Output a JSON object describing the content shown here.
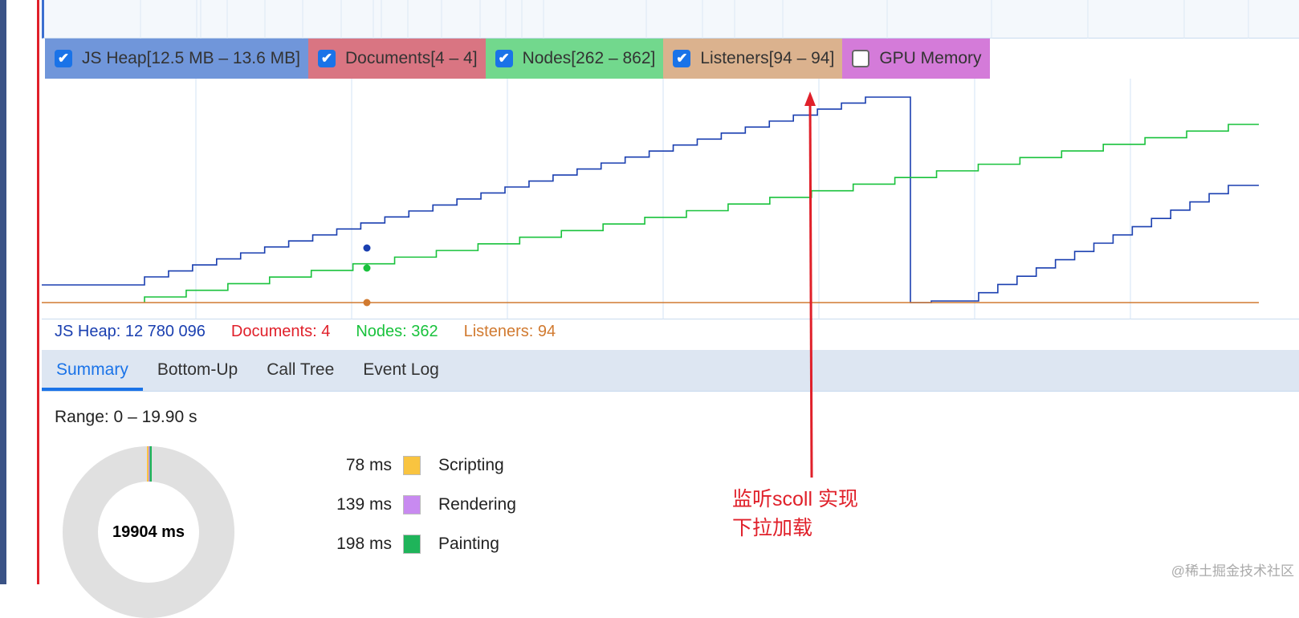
{
  "legend": [
    {
      "label": "JS Heap[12.5 MB – 13.6 MB]",
      "checked": true,
      "color": "#7096da"
    },
    {
      "label": "Documents[4 – 4]",
      "checked": true,
      "color": "#d97582"
    },
    {
      "label": "Nodes[262 – 862]",
      "checked": true,
      "color": "#72d88d"
    },
    {
      "label": "Listeners[94 – 94]",
      "checked": true,
      "color": "#dbb28e"
    },
    {
      "label": "GPU Memory",
      "checked": false,
      "color": "#d47bd9"
    }
  ],
  "counters": {
    "heap": "JS Heap: 12 780 096",
    "documents": "Documents: 4",
    "nodes": "Nodes: 362",
    "listeners": "Listeners: 94"
  },
  "colors": {
    "heap": "#1a3fb0",
    "documents": "#e0202a",
    "nodes": "#19c23c",
    "listeners": "#d17a30"
  },
  "tabs": [
    "Summary",
    "Bottom-Up",
    "Call Tree",
    "Event Log"
  ],
  "range": "Range: 0 – 19.90 s",
  "total": "19904 ms",
  "breakdown": [
    {
      "value": "78 ms",
      "label": "Scripting",
      "color": "#f9c440"
    },
    {
      "value": "139 ms",
      "label": "Rendering",
      "color": "#c88af0"
    },
    {
      "value": "198 ms",
      "label": "Painting",
      "color": "#1fb45a"
    }
  ],
  "annotation": "监听scoll 实现\n下拉加载",
  "watermark": "@稀土掘金技术社区"
}
